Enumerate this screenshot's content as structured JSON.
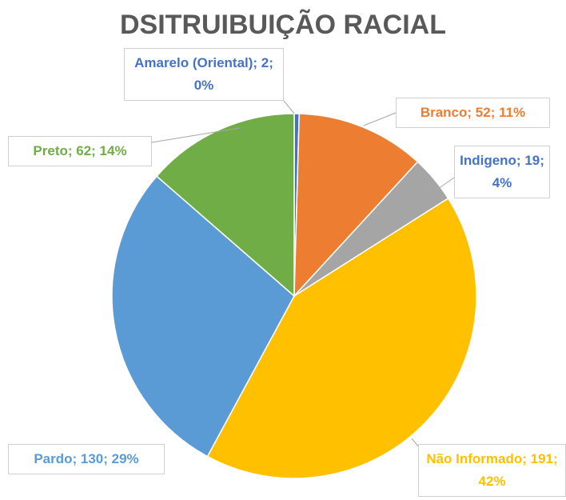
{
  "chart_data": {
    "type": "pie",
    "title": "DSITRUIBUIÇÃO RACIAL",
    "values": [
      2,
      52,
      19,
      191,
      130,
      62
    ],
    "value_labels": [
      "Amarelo (Oriental); 2; 0%",
      "Branco; 52; 11%",
      "Indigeno; 19; 4%",
      "Não Informado; 191; 42%",
      "Pardo; 130; 29%",
      "Preto; 62; 14%"
    ],
    "colors": [
      "#4472c4",
      "#ed7d31",
      "#a5a5a5",
      "#ffc000",
      "#5b9bd5",
      "#70ad47"
    ]
  }
}
